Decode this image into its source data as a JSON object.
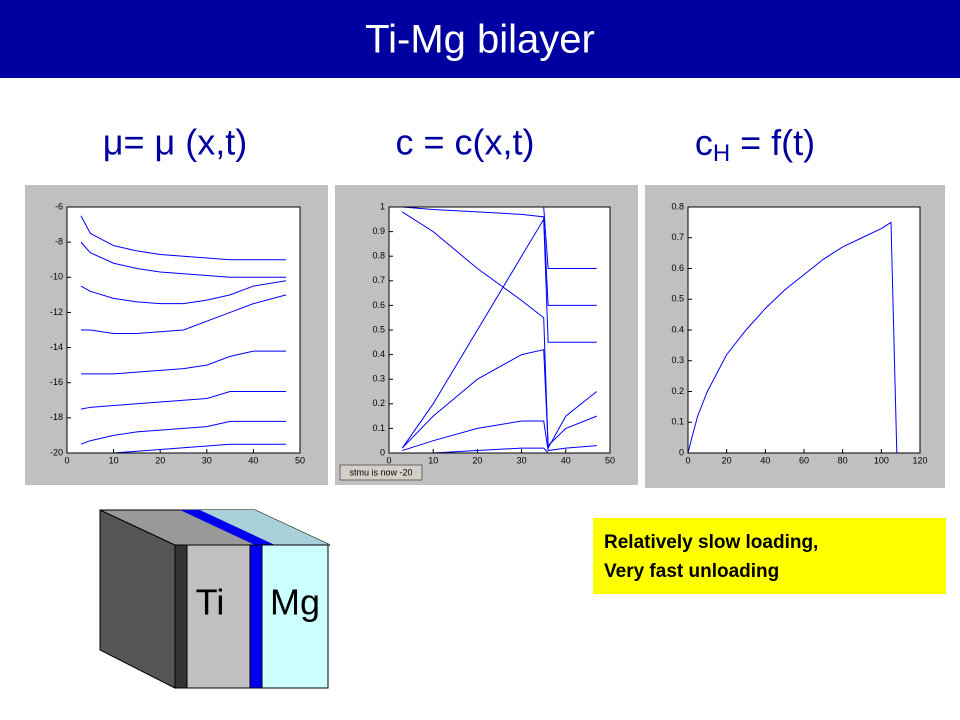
{
  "title": "Ti-Mg bilayer",
  "headings": [
    "μ= μ (x,t)",
    "c = c(x,t)",
    {
      "base": "c",
      "sub": "H",
      "rest": " = f(t)"
    }
  ],
  "note": [
    "Relatively slow loading,",
    "Very fast unloading"
  ],
  "diagram": {
    "left_label": "Ti",
    "right_label": "Mg"
  },
  "chart_data": [
    {
      "type": "line",
      "x": [
        3,
        5,
        10,
        15,
        20,
        25,
        30,
        35,
        40,
        47
      ],
      "xlim": [
        0,
        50
      ],
      "xticks": [
        0,
        10,
        20,
        30,
        40,
        50
      ],
      "ylim": [
        -20,
        -6
      ],
      "yticks": [
        -20,
        -18,
        -16,
        -14,
        -12,
        -10,
        -8,
        -6
      ],
      "series": [
        {
          "color": "#0000ff",
          "values": [
            -6.5,
            -7.5,
            -8.2,
            -8.5,
            -8.7,
            -8.8,
            -8.9,
            -9,
            -9,
            -9
          ]
        },
        {
          "color": "#0000ff",
          "values": [
            -8,
            -8.6,
            -9.2,
            -9.5,
            -9.7,
            -9.8,
            -9.9,
            -10,
            -10,
            -10
          ]
        },
        {
          "color": "#0000ff",
          "values": [
            -10.5,
            -10.8,
            -11.2,
            -11.4,
            -11.5,
            -11.5,
            -11.3,
            -11,
            -10.5,
            -10.2
          ]
        },
        {
          "color": "#0000ff",
          "values": [
            -13,
            -13,
            -13.2,
            -13.2,
            -13.1,
            -13,
            -12.5,
            -12,
            -11.5,
            -11
          ]
        },
        {
          "color": "#0000ff",
          "values": [
            -15.5,
            -15.5,
            -15.5,
            -15.4,
            -15.3,
            -15.2,
            -15,
            -14.5,
            -14.2,
            -14.2
          ]
        },
        {
          "color": "#0000ff",
          "values": [
            -17.5,
            -17.4,
            -17.3,
            -17.2,
            -17.1,
            -17,
            -16.9,
            -16.5,
            -16.5,
            -16.5
          ]
        },
        {
          "color": "#0000ff",
          "values": [
            -19.5,
            -19.3,
            -19,
            -18.8,
            -18.7,
            -18.6,
            -18.5,
            -18.2,
            -18.2,
            -18.2
          ]
        },
        {
          "color": "#0000ff",
          "values": [
            -20,
            -20,
            -20,
            -19.9,
            -19.8,
            -19.7,
            -19.6,
            -19.5,
            -19.5,
            -19.5
          ]
        }
      ]
    },
    {
      "type": "line",
      "x": [
        3,
        10,
        20,
        30,
        35,
        36,
        40,
        47
      ],
      "xlim": [
        0,
        50
      ],
      "xticks": [
        0,
        10,
        20,
        30,
        40,
        50
      ],
      "ylim": [
        0,
        1
      ],
      "yticks": [
        0,
        0.1,
        0.2,
        0.3,
        0.4,
        0.5,
        0.6,
        0.7,
        0.8,
        0.9,
        1
      ],
      "status_button": "stmu is now -20",
      "series": [
        {
          "color": "#0000ff",
          "values": [
            1,
            1,
            1,
            1,
            1,
            0.75,
            0.75,
            0.75
          ]
        },
        {
          "color": "#0000ff",
          "values": [
            1,
            0.99,
            0.98,
            0.97,
            0.96,
            0.6,
            0.6,
            0.6
          ]
        },
        {
          "color": "#0000ff",
          "values": [
            0.98,
            0.9,
            0.75,
            0.62,
            0.55,
            0.02,
            0.15,
            0.25
          ]
        },
        {
          "color": "#0000ff",
          "values": [
            0.02,
            0.2,
            0.5,
            0.8,
            0.95,
            0.45,
            0.45,
            0.45
          ]
        },
        {
          "color": "#0000ff",
          "values": [
            0.02,
            0.15,
            0.3,
            0.4,
            0.42,
            0.03,
            0.1,
            0.15
          ]
        },
        {
          "color": "#0000ff",
          "values": [
            0.01,
            0.05,
            0.1,
            0.13,
            0.13,
            0.01,
            0.02,
            0.03
          ]
        },
        {
          "color": "#0000ff",
          "values": [
            0,
            0,
            0.01,
            0.02,
            0.02,
            0,
            0,
            0
          ]
        }
      ]
    },
    {
      "type": "line",
      "x": [
        0,
        2,
        5,
        10,
        20,
        30,
        40,
        50,
        60,
        70,
        80,
        90,
        100,
        105,
        108,
        110
      ],
      "xlim": [
        0,
        120
      ],
      "xticks": [
        0,
        20,
        40,
        60,
        80,
        100,
        120
      ],
      "ylim": [
        0,
        0.8
      ],
      "yticks": [
        0,
        0.1,
        0.2,
        0.3,
        0.4,
        0.5,
        0.6,
        0.7,
        0.8
      ],
      "series": [
        {
          "color": "#0000ff",
          "values": [
            0,
            0.05,
            0.12,
            0.2,
            0.32,
            0.4,
            0.47,
            0.53,
            0.58,
            0.63,
            0.67,
            0.7,
            0.73,
            0.75,
            0,
            0
          ]
        }
      ]
    }
  ]
}
